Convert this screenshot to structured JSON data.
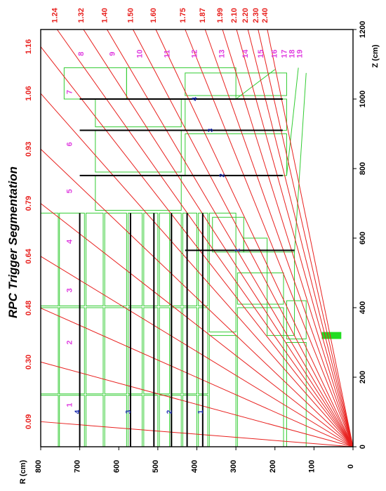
{
  "figure": {
    "title": "RPC Trigger Segmentation",
    "colors": {
      "frame": "#000000",
      "geometry": "#33cc33",
      "eta_lines": "#e8201e",
      "eta_labels": "#e8201e",
      "tower_labels": "#e040e0",
      "station_labels": "#1a2ab0",
      "chambers": "#000000",
      "bar": "#22dd22"
    }
  },
  "axes": {
    "z": {
      "label": "Z (cm)",
      "min": 0,
      "max": 1200,
      "ticks": [
        "0",
        "200",
        "400",
        "600",
        "800",
        "1000",
        "1200"
      ]
    },
    "r": {
      "label": "R (cm)",
      "min": 0,
      "max": 800,
      "ticks": [
        "0",
        "100",
        "200",
        "300",
        "400",
        "500",
        "600",
        "700",
        "800"
      ]
    }
  },
  "eta_lines": {
    "top_edge": [
      "1.24",
      "1.32",
      "1.40",
      "1.50",
      "1.60",
      "1.75",
      "1.87",
      "1.99",
      "2.10",
      "2.20",
      "2.30",
      "2.40"
    ],
    "left_edge": [
      "0.09",
      "0.30",
      "0.48",
      "0.64",
      "0.79",
      "0.93",
      "1.06",
      "1.16"
    ]
  },
  "towers": [
    "1",
    "2",
    "3",
    "4",
    "5",
    "6",
    "7",
    "8",
    "9",
    "10",
    "11",
    "12",
    "13",
    "14",
    "15",
    "16",
    "17",
    "18",
    "19"
  ],
  "stations": {
    "barrel": [
      "1",
      "2",
      "3",
      "4"
    ],
    "endcap": [
      "1",
      "2",
      "3",
      "4"
    ]
  }
}
